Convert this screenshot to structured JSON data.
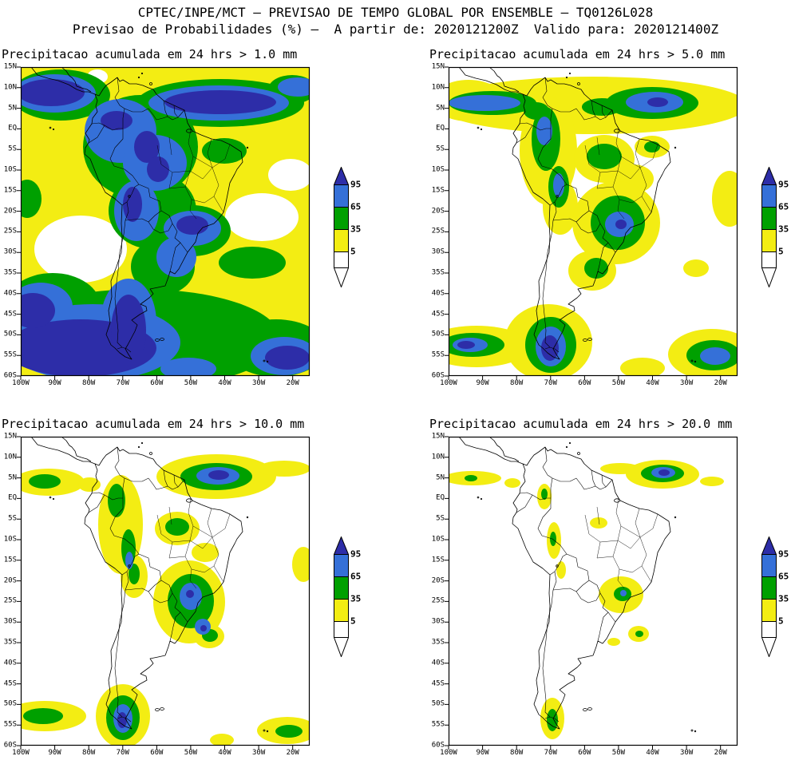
{
  "header": {
    "line1": "CPTEC/INPE/MCT – PREVISAO DE TEMPO GLOBAL POR ENSEMBLE – TQ0126L028",
    "line2": "Previsao de Probabilidades (%) –  A partir de: 2020121200Z  Valido para: 2020121400Z"
  },
  "axes": {
    "lat_ticks": [
      "15N",
      "10N",
      "5N",
      "EQ",
      "5S",
      "10S",
      "15S",
      "20S",
      "25S",
      "30S",
      "35S",
      "40S",
      "45S",
      "50S",
      "55S",
      "60S"
    ],
    "lon_ticks": [
      "100W",
      "90W",
      "80W",
      "70W",
      "60W",
      "50W",
      "40W",
      "30W",
      "20W"
    ]
  },
  "colorbar": {
    "labels": [
      "95",
      "65",
      "35",
      "5"
    ],
    "units": "%",
    "colors": {
      "p95": "#2d2da8",
      "p65": "#3570d8",
      "p35": "#00a000",
      "p5": "#f3ed13",
      "below_min": "#ffffff"
    }
  },
  "panels": [
    {
      "title": "Precipitacao acumulada em 24 hrs > 1.0 mm",
      "threshold_mm": 1.0
    },
    {
      "title": "Precipitacao acumulada em 24 hrs > 5.0 mm",
      "threshold_mm": 5.0
    },
    {
      "title": "Precipitacao acumulada em 24 hrs > 10.0 mm",
      "threshold_mm": 10.0
    },
    {
      "title": "Precipitacao acumulada em 24 hrs > 20.0 mm",
      "threshold_mm": 20.0
    }
  ],
  "chart_data": {
    "type": "heatmap",
    "subtype": "filled-contour probability maps (2x2 multipanel)",
    "shared": {
      "source": "CPTEC/INPE/MCT global ensemble TQ0126L028",
      "initialized": "2020121200Z",
      "valid": "2020121400Z",
      "quantity": "Probability (%) that 24-h accumulated precipitation exceeds threshold",
      "region": "South America and adjacent oceans",
      "x_axis": {
        "label": "longitude",
        "ticks": [
          "100W",
          "90W",
          "80W",
          "70W",
          "60W",
          "50W",
          "40W",
          "30W",
          "20W"
        ],
        "range": [
          "100W",
          "15W"
        ]
      },
      "y_axis": {
        "label": "latitude",
        "ticks": [
          "15N",
          "10N",
          "5N",
          "EQ",
          "5S",
          "10S",
          "15S",
          "20S",
          "25S",
          "30S",
          "35S",
          "40S",
          "45S",
          "50S",
          "55S",
          "60S"
        ],
        "range": [
          "15N",
          "60S"
        ]
      },
      "levels_percent": [
        5,
        35,
        65,
        95
      ],
      "level_colors": {
        "below_5": "#ffffff",
        "5_to_35": "#f3ed13",
        "35_to_65": "#00a000",
        "65_to_95": "#3570d8",
        "above_95": "#2d2da8"
      },
      "legend_position": "right of each panel",
      "grid": false
    },
    "panels": [
      {
        "title": "Precipitacao acumulada em 24 hrs > 1.0 mm",
        "threshold_mm": 1.0,
        "coverage": "very widespread shading; most of the domain above 5%",
        "high_probability_areas": [
          "east Pacific / Colombian coast near 5-12N (>95%)",
          "Amazon basin and tropical Andes (65->95%)",
          "ITCZ band over tropical Atlantic near 5N (>95%)",
          "southeast Brazil (>95% core)",
          "southern Chile, Patagonia and Southern Ocean (>95%)",
          "far South Atlantic near 55S (>95%)"
        ],
        "clear_areas": [
          "subtropical southeast Pacific near 25-35S",
          "subtropical South Atlantic near 20-25S"
        ]
      },
      {
        "title": "Precipitacao acumulada em 24 hrs > 5.0 mm",
        "threshold_mm": 5.0,
        "coverage": "band along ITCZ near 5N plus Andes, SE Brazil, far south",
        "high_probability_areas": [
          "ITCZ near 5N (65-95% segments, small >95% core near 38W)",
          "east Pacific near 5N west of 90W (65-95%)",
          "Andes of Colombia-Peru-Bolivia (35-65%)",
          "central and southeast Brazil (35-65% with small >95% speck)",
          "far southern Chile (>95% core)",
          "South Atlantic near 55S 25W (65%)"
        ]
      },
      {
        "title": "Precipitacao acumulada em 24 hrs > 10.0 mm",
        "threshold_mm": 10.0,
        "coverage": "reduced; isolated maxima",
        "high_probability_areas": [
          "ITCZ blob near 5N 42W (65->95% core)",
          "east Pacific near 5N west of 95W (35%)",
          "Andes strip (35-65% patches)",
          "southeast Brazil / Uruguay (65% cores with >95% specks)",
          "far southern Chile (>95% core)",
          "South Atlantic near 55S (35%)"
        ]
      },
      {
        "title": "Precipitacao acumulada em 24 hrs > 20.0 mm",
        "threshold_mm": 20.0,
        "coverage": "sparse, mostly 5-35% patches",
        "high_probability_areas": [
          "ITCZ near 5N 37W (blue/navy small core)",
          "Andes isolated 35-65% specks",
          "southeast Brazil small 35-65% core",
          "far southern Chile small 35-65% core"
        ]
      }
    ]
  }
}
